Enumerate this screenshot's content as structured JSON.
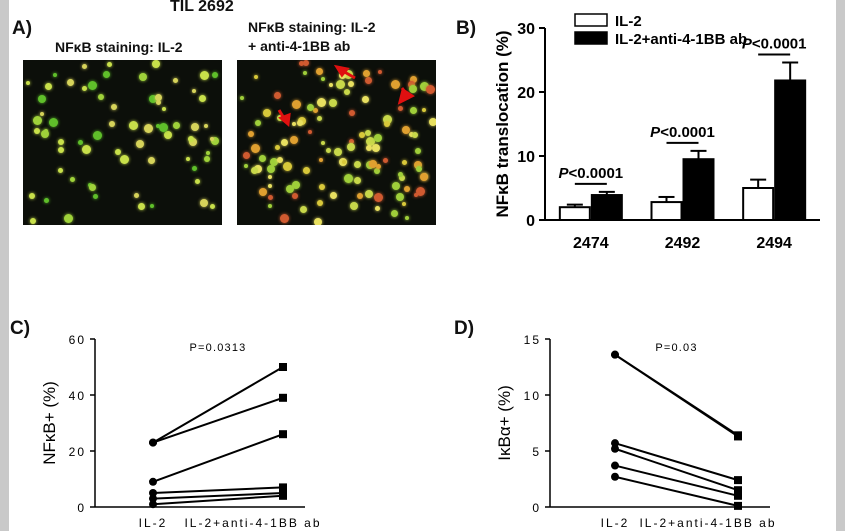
{
  "panel_a": {
    "label": "A)",
    "title": "TIL 2692",
    "left_caption": "NFκB staining: IL-2",
    "right_caption_line1": "NFκB staining: IL-2",
    "right_caption_line2": "+ anti-4-1BB ab"
  },
  "chart_data": [
    {
      "id": "B",
      "panel_label": "B)",
      "type": "bar",
      "ylabel": "NFκB translocation (%)",
      "categories": [
        "2474",
        "2492",
        "2494"
      ],
      "series": [
        {
          "name": "IL-2",
          "values": [
            2.0,
            2.8,
            5.0
          ],
          "errors": [
            0.4,
            0.8,
            1.3
          ],
          "color": "#ffffff"
        },
        {
          "name": "IL-2+anti-4-1BB ab",
          "values": [
            3.9,
            9.5,
            21.8
          ],
          "errors": [
            0.5,
            1.3,
            2.8
          ],
          "color": "#000000"
        }
      ],
      "pvalues": [
        "P<0.0001",
        "P<0.0001",
        "P<0.0001"
      ],
      "ylim": [
        0,
        30
      ],
      "yticks": [
        "0",
        "10",
        "20",
        "30"
      ],
      "legend": "top-left"
    },
    {
      "id": "C",
      "panel_label": "C)",
      "type": "line",
      "ylabel": "NFκB+ (%)",
      "categories": [
        "IL-2",
        "IL-2+anti-4-1BB ab"
      ],
      "pvalue": "P=0.0313",
      "ylim": [
        0,
        60
      ],
      "yticks": [
        "0",
        "20",
        "40",
        "60"
      ],
      "pairs": [
        [
          23,
          50
        ],
        [
          23,
          39
        ],
        [
          9,
          26
        ],
        [
          5,
          7
        ],
        [
          3,
          5
        ],
        [
          1,
          4
        ]
      ]
    },
    {
      "id": "D",
      "panel_label": "D)",
      "type": "line",
      "ylabel": "IκBα+ (%)",
      "categories": [
        "IL-2",
        "IL-2+anti-4-1BB ab"
      ],
      "pvalue": "P=0.03",
      "ylim": [
        0,
        15
      ],
      "yticks": [
        "0",
        "5",
        "10",
        "15"
      ],
      "pairs": [
        [
          13.6,
          6.4
        ],
        [
          13.6,
          6.3
        ],
        [
          5.7,
          2.4
        ],
        [
          5.2,
          1.5
        ],
        [
          3.7,
          1.0
        ],
        [
          2.7,
          0.1
        ]
      ]
    }
  ]
}
